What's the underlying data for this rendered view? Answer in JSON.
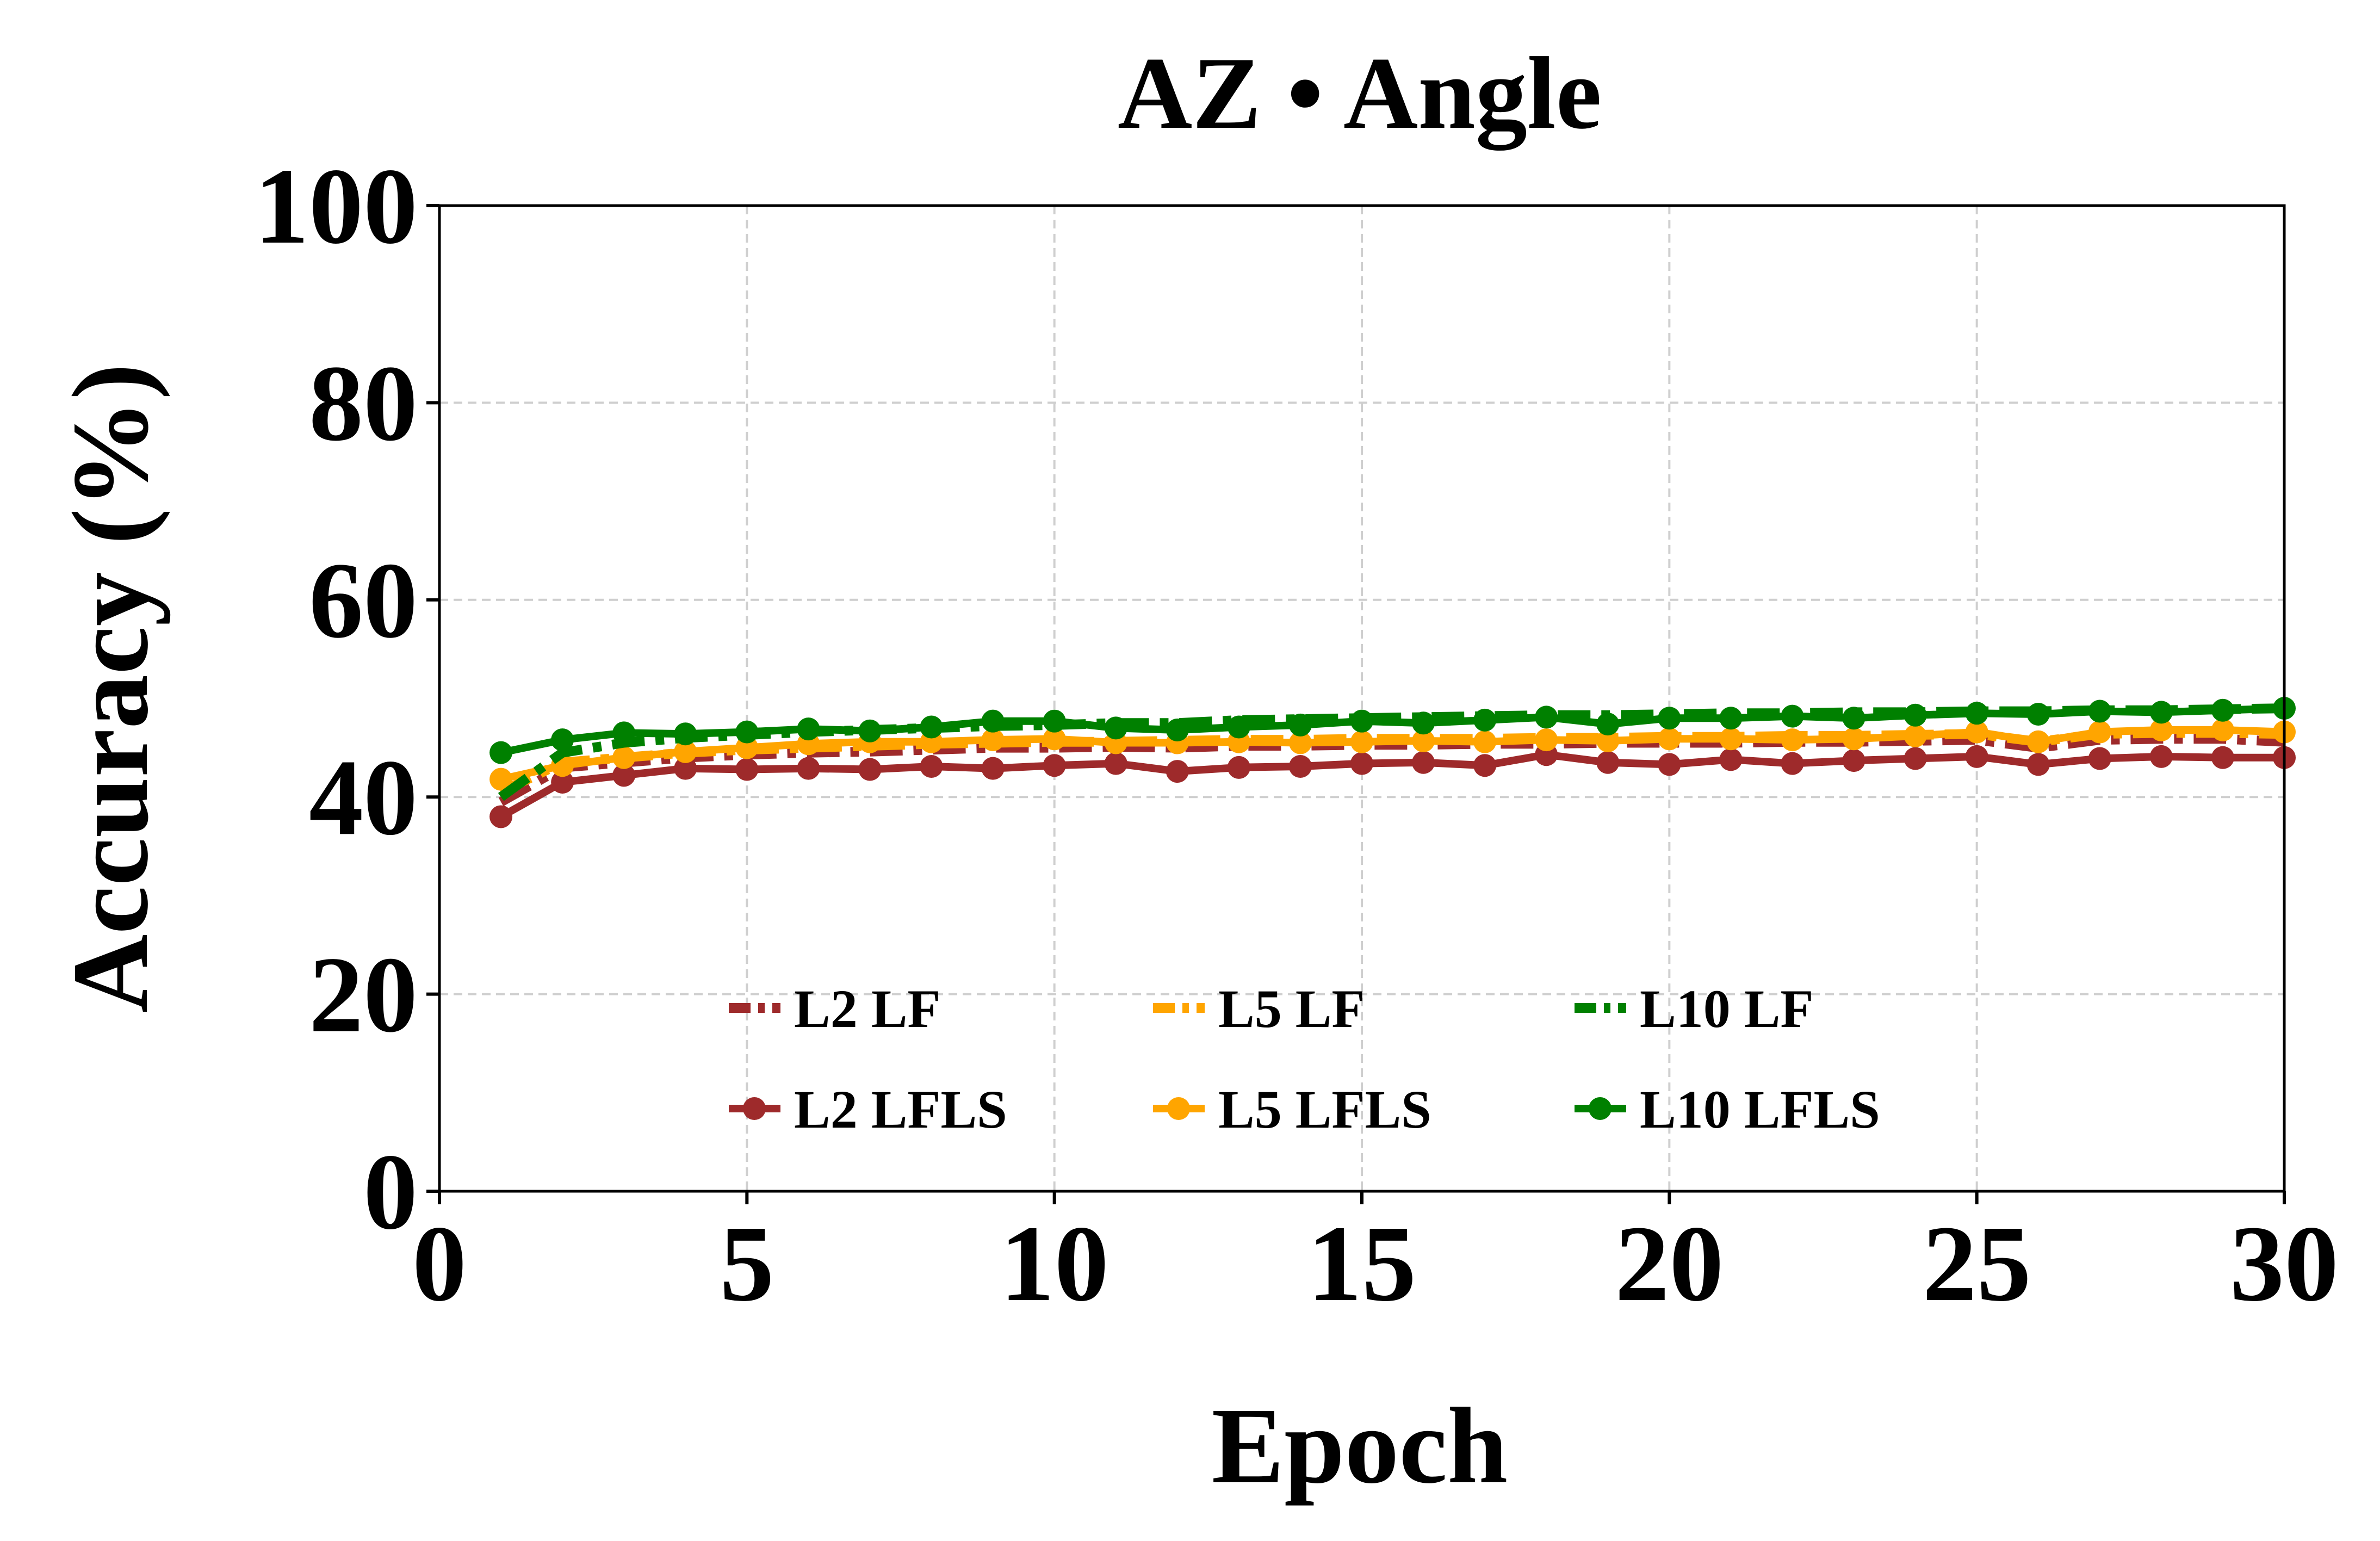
{
  "chart_data": {
    "type": "line",
    "title": "AZ • Angle",
    "xlabel": "Epoch",
    "ylabel": "Accuracy (%)",
    "xlim": [
      0,
      30
    ],
    "ylim": [
      0,
      100
    ],
    "xticks": [
      0,
      5,
      10,
      15,
      20,
      25,
      30
    ],
    "yticks": [
      0,
      20,
      40,
      60,
      80,
      100
    ],
    "grid": true,
    "legend_position": "lower-center",
    "legend_columns": 3,
    "x": [
      1,
      2,
      3,
      4,
      5,
      6,
      7,
      8,
      9,
      10,
      11,
      12,
      13,
      14,
      15,
      16,
      17,
      18,
      19,
      20,
      21,
      22,
      23,
      24,
      25,
      26,
      27,
      28,
      29,
      30
    ],
    "series": [
      {
        "name": "L2 LF",
        "color": "#9e2a2b",
        "style": "dashdot",
        "markers": false,
        "values": [
          39.5,
          43.0,
          43.5,
          44.0,
          44.3,
          44.5,
          44.6,
          44.8,
          45.0,
          45.0,
          45.1,
          45.0,
          45.2,
          45.2,
          45.3,
          45.3,
          45.4,
          45.4,
          45.5,
          45.5,
          45.5,
          45.6,
          45.6,
          45.7,
          45.8,
          45.0,
          45.8,
          45.9,
          45.9,
          45.6
        ]
      },
      {
        "name": "L2 LFLS",
        "color": "#9e2a2b",
        "style": "solid",
        "markers": true,
        "values": [
          38.0,
          41.5,
          42.2,
          42.9,
          42.8,
          42.9,
          42.8,
          43.1,
          42.9,
          43.2,
          43.4,
          42.6,
          43.0,
          43.1,
          43.4,
          43.5,
          43.2,
          44.3,
          43.5,
          43.3,
          43.8,
          43.4,
          43.7,
          43.9,
          44.1,
          43.3,
          43.9,
          44.1,
          44.0,
          44.0
        ]
      },
      {
        "name": "L5 LF",
        "color": "#ffa500",
        "style": "dashdot",
        "markers": false,
        "values": [
          40.5,
          43.5,
          44.0,
          44.5,
          44.8,
          45.0,
          45.2,
          45.4,
          45.5,
          45.6,
          45.6,
          45.7,
          45.8,
          45.8,
          45.9,
          45.9,
          45.9,
          46.0,
          46.0,
          46.1,
          46.1,
          46.2,
          46.2,
          46.3,
          46.4,
          45.6,
          46.4,
          46.5,
          46.5,
          46.4
        ]
      },
      {
        "name": "L5 LFLS",
        "color": "#ffa500",
        "style": "solid",
        "markers": true,
        "values": [
          41.8,
          43.2,
          44.0,
          44.6,
          45.0,
          45.4,
          45.6,
          45.6,
          45.8,
          45.9,
          45.5,
          45.5,
          45.6,
          45.5,
          45.6,
          45.7,
          45.6,
          45.8,
          45.7,
          45.9,
          45.9,
          45.8,
          45.9,
          46.2,
          46.6,
          45.6,
          46.6,
          46.8,
          46.8,
          46.6
        ]
      },
      {
        "name": "L10 LF",
        "color": "#008000",
        "style": "dashdot",
        "markers": false,
        "values": [
          40.0,
          44.5,
          45.5,
          46.0,
          46.3,
          46.6,
          46.8,
          47.0,
          47.2,
          47.3,
          47.5,
          47.5,
          47.8,
          47.9,
          48.0,
          48.1,
          48.2,
          48.3,
          48.3,
          48.4,
          48.5,
          48.5,
          48.6,
          48.6,
          48.7,
          48.7,
          48.8,
          48.8,
          48.9,
          49.0
        ]
      },
      {
        "name": "L10 LFLS",
        "color": "#008000",
        "style": "solid",
        "markers": true,
        "values": [
          44.5,
          45.8,
          46.5,
          46.4,
          46.6,
          46.9,
          46.7,
          47.1,
          47.7,
          47.7,
          47.0,
          46.8,
          47.1,
          47.3,
          47.7,
          47.5,
          47.8,
          48.1,
          47.4,
          48.0,
          48.0,
          48.2,
          48.0,
          48.3,
          48.5,
          48.4,
          48.7,
          48.6,
          48.8,
          49.0
        ]
      }
    ]
  }
}
